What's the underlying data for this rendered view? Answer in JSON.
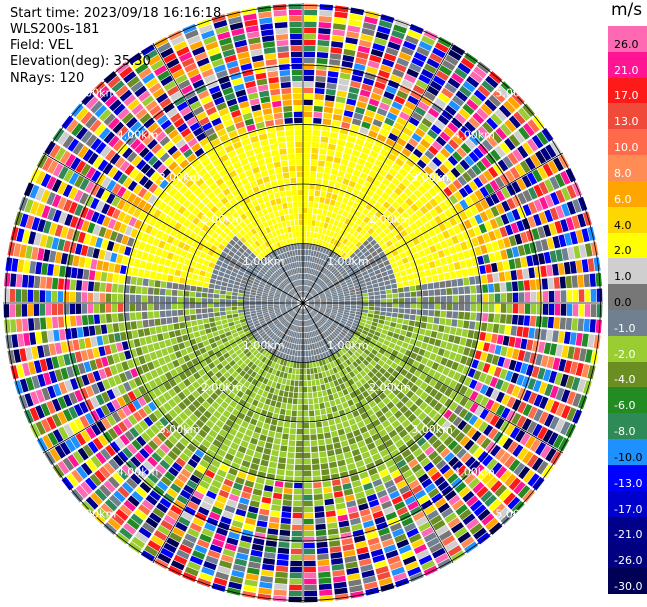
{
  "info": {
    "start_time": "Start time: 2023/09/18 16:16:18",
    "instrument": "WLS200s-181",
    "field": "Field: VEL",
    "elevation": "Elevation(deg): 35.30",
    "nrays": "NRays: 120"
  },
  "colorbar": {
    "unit": "m/s",
    "entries": [
      {
        "label": "26.0",
        "color": "#ff69b4",
        "text": "#000000"
      },
      {
        "label": "21.0",
        "color": "#ff1493",
        "text": "#ffffff"
      },
      {
        "label": "17.0",
        "color": "#ff1a1a",
        "text": "#ffffff"
      },
      {
        "label": "13.0",
        "color": "#f04a3a",
        "text": "#ffffff"
      },
      {
        "label": "10.0",
        "color": "#ff6a4a",
        "text": "#ffffff"
      },
      {
        "label": "8.0",
        "color": "#ff8c55",
        "text": "#ffffff"
      },
      {
        "label": "6.0",
        "color": "#ffa500",
        "text": "#ffffff"
      },
      {
        "label": "4.0",
        "color": "#ffd700",
        "text": "#000000"
      },
      {
        "label": "2.0",
        "color": "#ffff00",
        "text": "#000000"
      },
      {
        "label": "1.0",
        "color": "#cfcfcf",
        "text": "#000000"
      },
      {
        "label": "0.0",
        "color": "#777777",
        "text": "#000000"
      },
      {
        "label": "-1.0",
        "color": "#708090",
        "text": "#ffffff"
      },
      {
        "label": "-2.0",
        "color": "#9acd32",
        "text": "#ffffff"
      },
      {
        "label": "-4.0",
        "color": "#6b8e23",
        "text": "#ffffff"
      },
      {
        "label": "-6.0",
        "color": "#228b22",
        "text": "#ffffff"
      },
      {
        "label": "-8.0",
        "color": "#2e8b57",
        "text": "#ffffff"
      },
      {
        "label": "-10.0",
        "color": "#1e90ff",
        "text": "#000000"
      },
      {
        "label": "-13.0",
        "color": "#0000ff",
        "text": "#ffffff"
      },
      {
        "label": "-17.0",
        "color": "#0000cd",
        "text": "#ffffff"
      },
      {
        "label": "-21.0",
        "color": "#00008b",
        "text": "#ffffff"
      },
      {
        "label": "-26.0",
        "color": "#000080",
        "text": "#ffffff"
      },
      {
        "label": "-30.0",
        "color": "#000055",
        "text": "#ffffff"
      }
    ]
  },
  "range_rings": {
    "labels": [
      "1.00km",
      "2.00km",
      "3.00km",
      "4.00km",
      "5.00km"
    ]
  }
}
